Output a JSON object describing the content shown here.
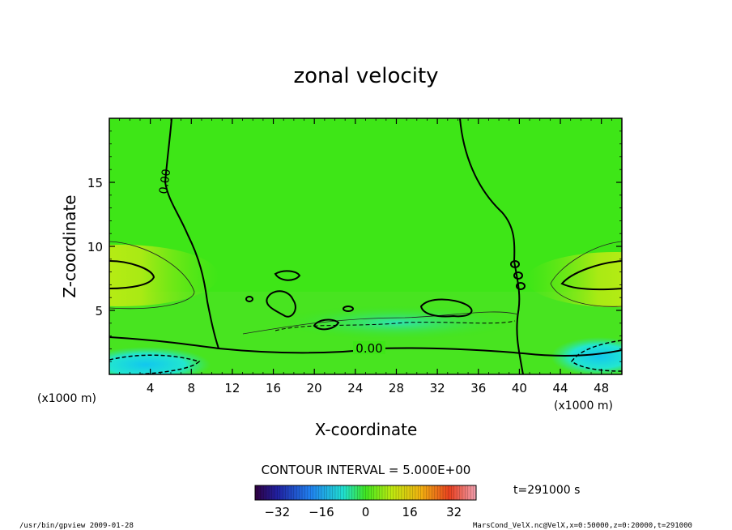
{
  "chart_data": {
    "type": "heatmap",
    "title": "zonal velocity",
    "xlabel": "X-coordinate",
    "ylabel": "Z-coordinate",
    "x_unit_left": "(x1000 m)",
    "x_unit_right": "(x1000 m)",
    "xlim": [
      0,
      50
    ],
    "ylim": [
      0,
      20
    ],
    "x_ticks": [
      4,
      8,
      12,
      16,
      20,
      24,
      28,
      32,
      36,
      40,
      44,
      48
    ],
    "y_ticks": [
      5,
      10,
      15
    ],
    "contour_interval_label": "CONTOUR INTERVAL = 5.000E+00",
    "contour_labels": [
      "0.00",
      "0.00"
    ],
    "colorbar": {
      "range": [
        -40,
        40
      ],
      "ticks": [
        -32,
        -16,
        0,
        16,
        32
      ]
    },
    "colors": {
      "background_field": "#3ee617",
      "positive_core": "#d6ee12",
      "negative_core": "#16e9d6",
      "deep_negative": "#18b7ea"
    }
  },
  "footer": {
    "time_label": "t=291000 s",
    "program": "/usr/bin/gpview   2009-01-28",
    "file": "MarsCond_VelX.nc@VelX,x=0:50000,z=0:20000,t=291000"
  }
}
